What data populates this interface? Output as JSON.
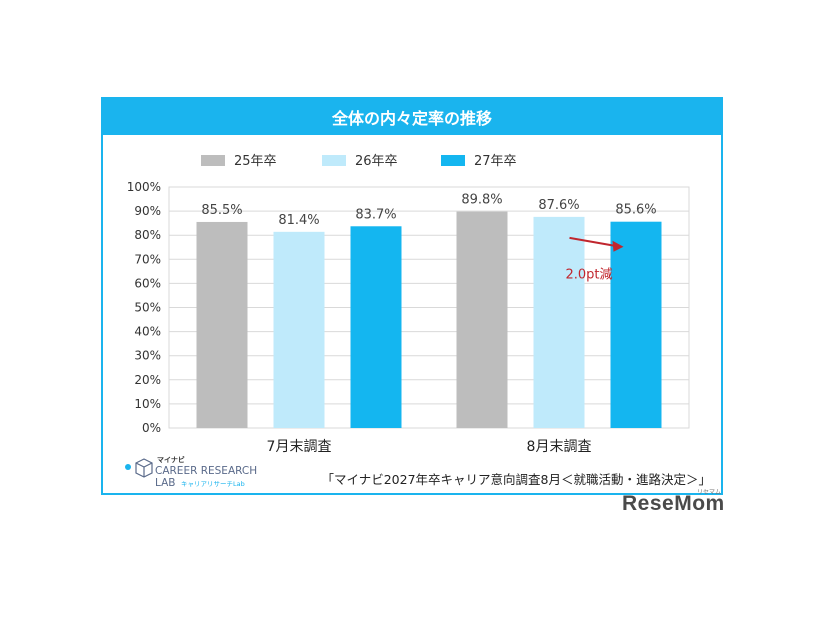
{
  "title": "全体の内々定率の推移",
  "source_note": "「マイナビ2027年卒キャリア意向調査8月＜就職活動・進路決定＞」",
  "logo": {
    "brand_small": "マイナビ",
    "line1": "CAREER RESEARCH",
    "line2": "LAB",
    "sub": "キャリアリサーチLab"
  },
  "watermark": {
    "main": "ReseMom",
    "small": "リセマム"
  },
  "colors": {
    "accent": "#1ab4ee",
    "annotation": "#c0262e"
  },
  "chart_data": {
    "type": "bar",
    "categories": [
      "7月末調査",
      "8月末調査"
    ],
    "series": [
      {
        "name": "25年卒",
        "color": "#bdbdbd",
        "values": [
          85.5,
          89.8
        ],
        "labels": [
          "85.5%",
          "89.8%"
        ]
      },
      {
        "name": "26年卒",
        "color": "#bfeafb",
        "values": [
          81.4,
          87.6
        ],
        "labels": [
          "81.4%",
          "87.6%"
        ]
      },
      {
        "name": "27年卒",
        "color": "#14b6f0",
        "values": [
          83.7,
          85.6
        ],
        "labels": [
          "83.7%",
          "85.6%"
        ]
      }
    ],
    "yticks": [
      "0%",
      "10%",
      "20%",
      "30%",
      "40%",
      "50%",
      "60%",
      "70%",
      "80%",
      "90%",
      "100%"
    ],
    "ylim": [
      0,
      100
    ],
    "grid": true,
    "legend_position": "top",
    "annotation": {
      "text": "2.0pt減",
      "category": "8月末調査",
      "from_series": "26年卒",
      "to_series": "27年卒"
    }
  }
}
